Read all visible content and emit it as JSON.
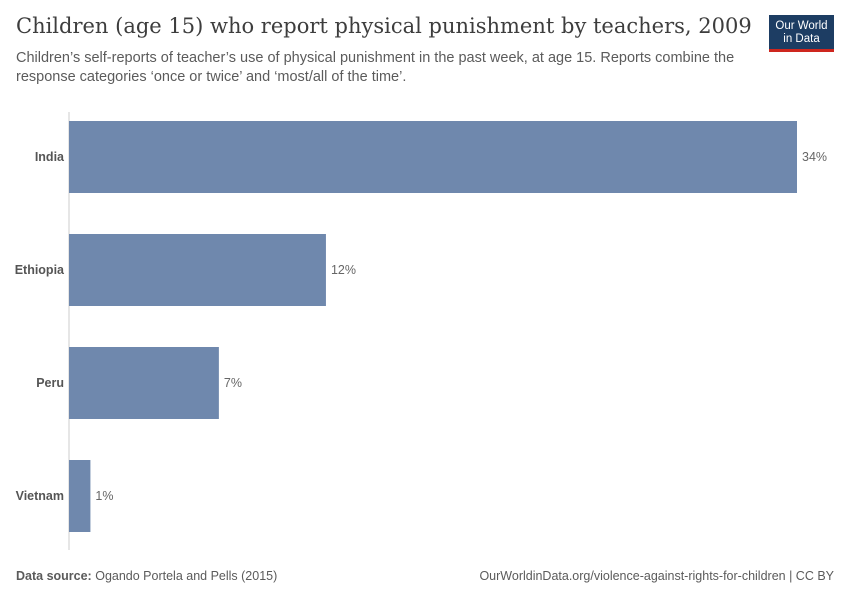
{
  "header": {
    "title": "Children (age 15) who report physical punishment by teachers, 2009",
    "subtitle": "Children’s self-reports of teacher’s use of physical punishment in the past week, at age 15. Reports combine the response categories ‘once or twice’ and ‘most/all of the time’."
  },
  "logo": {
    "line1": "Our World",
    "line2": "in Data"
  },
  "footer": {
    "source_label": "Data source:",
    "source_text": "Ogando Portela and Pells (2015)",
    "url_text": "OurWorldinData.org/violence-against-rights-for-children | CC BY"
  },
  "colors": {
    "bar": "#6f88ad",
    "axis": "#cccccc",
    "logo_bg": "#1d3d63",
    "logo_accent": "#ce261e"
  },
  "chart_data": {
    "type": "bar",
    "orientation": "horizontal",
    "categories": [
      "India",
      "Ethiopia",
      "Peru",
      "Vietnam"
    ],
    "values": [
      34,
      12,
      7,
      1
    ],
    "value_labels": [
      "34%",
      "12%",
      "7%",
      "1%"
    ],
    "unit": "%",
    "xlim": [
      0,
      34
    ],
    "grid": false,
    "legend": "none"
  }
}
